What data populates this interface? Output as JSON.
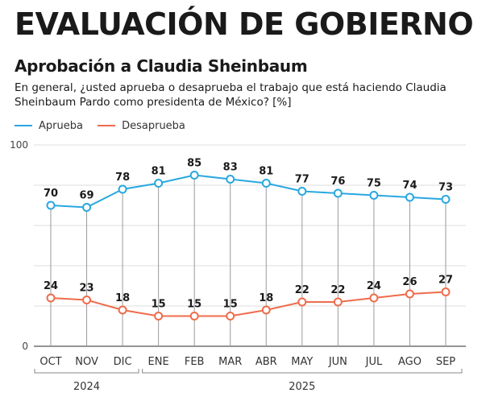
{
  "header": {
    "title": "EVALUACIÓN DE GOBIERNO",
    "subtitle": "Aprobación a Claudia Sheinbaum",
    "question": "En general, ¿usted aprueba o desaprueba el trabajo que está haciendo Claudia Sheinbaum Pardo como presidenta de México? [%]"
  },
  "colors": {
    "aprueba": "#29a8e0",
    "desaprueba": "#ef6c4b"
  },
  "chart_data": {
    "type": "line",
    "categories": [
      "OCT",
      "NOV",
      "DIC",
      "ENE",
      "FEB",
      "MAR",
      "ABR",
      "MAY",
      "JUN",
      "JUL",
      "AGO",
      "SEP"
    ],
    "year_groups": [
      {
        "label": "2024",
        "from": 0,
        "to": 2
      },
      {
        "label": "2025",
        "from": 3,
        "to": 11
      }
    ],
    "series": [
      {
        "name": "Aprueba",
        "values": [
          70,
          69,
          78,
          81,
          85,
          83,
          81,
          77,
          76,
          75,
          74,
          73
        ]
      },
      {
        "name": "Desaprueba",
        "values": [
          24,
          23,
          18,
          15,
          15,
          15,
          18,
          22,
          22,
          24,
          26,
          27
        ]
      }
    ],
    "ylim": [
      0,
      100
    ],
    "y_tick_labels": [
      "0",
      "100"
    ],
    "xlabel": "",
    "ylabel": "",
    "legend": "top-left"
  }
}
